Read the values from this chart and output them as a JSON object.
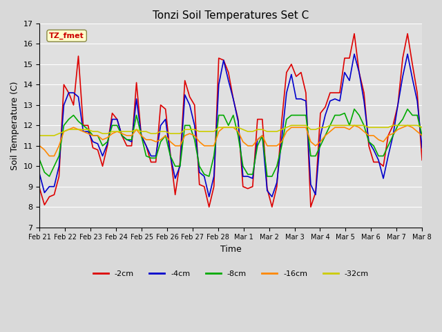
{
  "title": "Tonzi Soil Temperatures Set C",
  "xlabel": "Time",
  "ylabel": "Soil Temperature (C)",
  "ylim": [
    7.0,
    17.0
  ],
  "yticks": [
    7.0,
    8.0,
    9.0,
    10.0,
    11.0,
    12.0,
    13.0,
    14.0,
    15.0,
    16.0,
    17.0
  ],
  "xtick_labels": [
    "Feb 21",
    "Feb 22",
    "Feb 23",
    "Feb 24",
    "Feb 25",
    "Feb 26",
    "Feb 27",
    "Feb 28",
    "Mar 1",
    "Mar 2",
    "Mar 3",
    "Mar 4",
    "Mar 5",
    "Mar 6",
    "Mar 7",
    "Mar 8"
  ],
  "annotation_label": "TZ_fmet",
  "annotation_color": "#cc0000",
  "annotation_bg": "#ffffcc",
  "fig_bg": "#d9d9d9",
  "plot_bg": "#e0e0e0",
  "legend_entries": [
    "-2cm",
    "-4cm",
    "-8cm",
    "-16cm",
    "-32cm"
  ],
  "line_colors": [
    "#dd0000",
    "#0000cc",
    "#00aa00",
    "#ff8800",
    "#cccc00"
  ],
  "line_widths": [
    1.2,
    1.2,
    1.2,
    1.2,
    1.2
  ],
  "data_2cm": [
    8.9,
    8.1,
    8.5,
    8.6,
    9.5,
    14.0,
    13.6,
    13.0,
    15.4,
    12.0,
    12.0,
    10.9,
    10.8,
    10.0,
    11.0,
    12.6,
    12.3,
    11.5,
    11.0,
    11.0,
    14.1,
    11.5,
    11.0,
    10.2,
    10.2,
    13.0,
    12.8,
    10.6,
    8.6,
    10.2,
    14.2,
    13.4,
    13.0,
    9.1,
    9.0,
    8.0,
    9.0,
    15.3,
    15.2,
    14.6,
    13.3,
    12.3,
    9.0,
    8.9,
    9.0,
    12.3,
    12.3,
    8.9,
    8.0,
    9.0,
    12.2,
    14.6,
    15.0,
    14.4,
    14.6,
    13.6,
    8.0,
    8.7,
    12.6,
    12.9,
    13.6,
    13.6,
    13.6,
    15.3,
    15.3,
    16.5,
    14.6,
    13.6,
    11.0,
    10.2,
    10.2,
    10.0,
    11.5,
    12.0,
    13.0,
    15.3,
    16.5,
    15.0,
    13.6,
    10.3
  ],
  "data_4cm": [
    9.6,
    8.7,
    9.0,
    9.0,
    10.0,
    13.0,
    13.6,
    13.6,
    13.4,
    11.7,
    11.7,
    11.2,
    11.1,
    10.5,
    11.1,
    12.3,
    12.3,
    11.5,
    11.3,
    11.2,
    13.3,
    11.5,
    11.0,
    10.5,
    10.5,
    12.0,
    12.3,
    10.5,
    9.4,
    10.0,
    13.5,
    13.0,
    12.0,
    9.7,
    9.5,
    8.5,
    9.5,
    14.0,
    15.2,
    14.2,
    13.3,
    12.2,
    9.5,
    9.5,
    9.4,
    11.3,
    11.5,
    8.8,
    8.5,
    9.2,
    11.3,
    13.6,
    14.5,
    13.3,
    13.3,
    13.2,
    9.1,
    8.6,
    11.5,
    12.5,
    13.2,
    13.3,
    13.2,
    14.6,
    14.2,
    15.5,
    14.6,
    13.2,
    11.2,
    10.8,
    10.3,
    9.4,
    10.5,
    11.5,
    13.0,
    14.4,
    15.5,
    14.3,
    13.2,
    10.9
  ],
  "data_8cm": [
    10.3,
    9.7,
    9.5,
    10.0,
    10.5,
    12.0,
    12.3,
    12.5,
    12.2,
    12.0,
    11.8,
    11.5,
    11.5,
    11.0,
    11.2,
    12.0,
    12.0,
    11.5,
    11.3,
    11.3,
    12.5,
    11.5,
    10.5,
    10.4,
    10.4,
    11.2,
    11.5,
    10.5,
    10.0,
    10.0,
    12.0,
    12.0,
    11.3,
    10.0,
    9.6,
    9.5,
    10.5,
    12.5,
    12.5,
    12.0,
    12.5,
    11.5,
    10.0,
    9.6,
    9.6,
    11.0,
    11.5,
    9.5,
    9.5,
    10.0,
    11.0,
    12.3,
    12.5,
    12.5,
    12.5,
    12.5,
    10.5,
    10.5,
    11.0,
    11.5,
    12.0,
    12.5,
    12.5,
    12.6,
    12.0,
    12.8,
    12.5,
    12.0,
    11.2,
    11.0,
    10.5,
    10.5,
    11.0,
    11.5,
    12.0,
    12.3,
    12.8,
    12.5,
    12.5,
    11.5
  ],
  "data_16cm": [
    11.0,
    10.8,
    10.5,
    10.5,
    11.0,
    11.7,
    11.8,
    11.9,
    11.8,
    11.7,
    11.6,
    11.5,
    11.5,
    11.3,
    11.4,
    11.6,
    11.7,
    11.6,
    11.5,
    11.5,
    11.8,
    11.5,
    11.3,
    11.3,
    11.2,
    11.3,
    11.5,
    11.2,
    11.0,
    11.0,
    11.5,
    11.6,
    11.5,
    11.2,
    11.0,
    11.0,
    11.0,
    11.7,
    11.9,
    11.9,
    11.9,
    11.7,
    11.2,
    11.0,
    11.0,
    11.3,
    11.5,
    11.0,
    11.0,
    11.0,
    11.2,
    11.7,
    11.9,
    11.9,
    11.9,
    11.9,
    11.2,
    11.0,
    11.2,
    11.5,
    11.7,
    11.9,
    11.9,
    11.9,
    11.8,
    12.0,
    11.9,
    11.7,
    11.5,
    11.5,
    11.3,
    11.2,
    11.5,
    11.6,
    11.8,
    11.9,
    12.0,
    11.9,
    11.7,
    11.5
  ],
  "data_32cm": [
    11.5,
    11.5,
    11.5,
    11.5,
    11.6,
    11.7,
    11.8,
    11.8,
    11.8,
    11.8,
    11.8,
    11.7,
    11.7,
    11.6,
    11.6,
    11.7,
    11.7,
    11.7,
    11.7,
    11.7,
    11.8,
    11.7,
    11.7,
    11.6,
    11.6,
    11.7,
    11.7,
    11.6,
    11.6,
    11.6,
    11.8,
    11.8,
    11.8,
    11.7,
    11.7,
    11.7,
    11.7,
    11.9,
    11.9,
    11.9,
    11.9,
    11.9,
    11.8,
    11.7,
    11.7,
    11.8,
    11.8,
    11.7,
    11.7,
    11.7,
    11.8,
    11.9,
    12.0,
    12.0,
    12.0,
    12.0,
    11.8,
    11.8,
    11.9,
    11.9,
    12.0,
    12.0,
    12.0,
    12.0,
    12.0,
    12.0,
    12.0,
    12.0,
    11.9,
    11.9,
    11.9,
    11.9,
    11.9,
    12.0,
    12.0,
    12.0,
    12.0,
    12.0,
    12.0,
    11.9
  ],
  "figsize": [
    6.4,
    4.8
  ],
  "dpi": 100
}
